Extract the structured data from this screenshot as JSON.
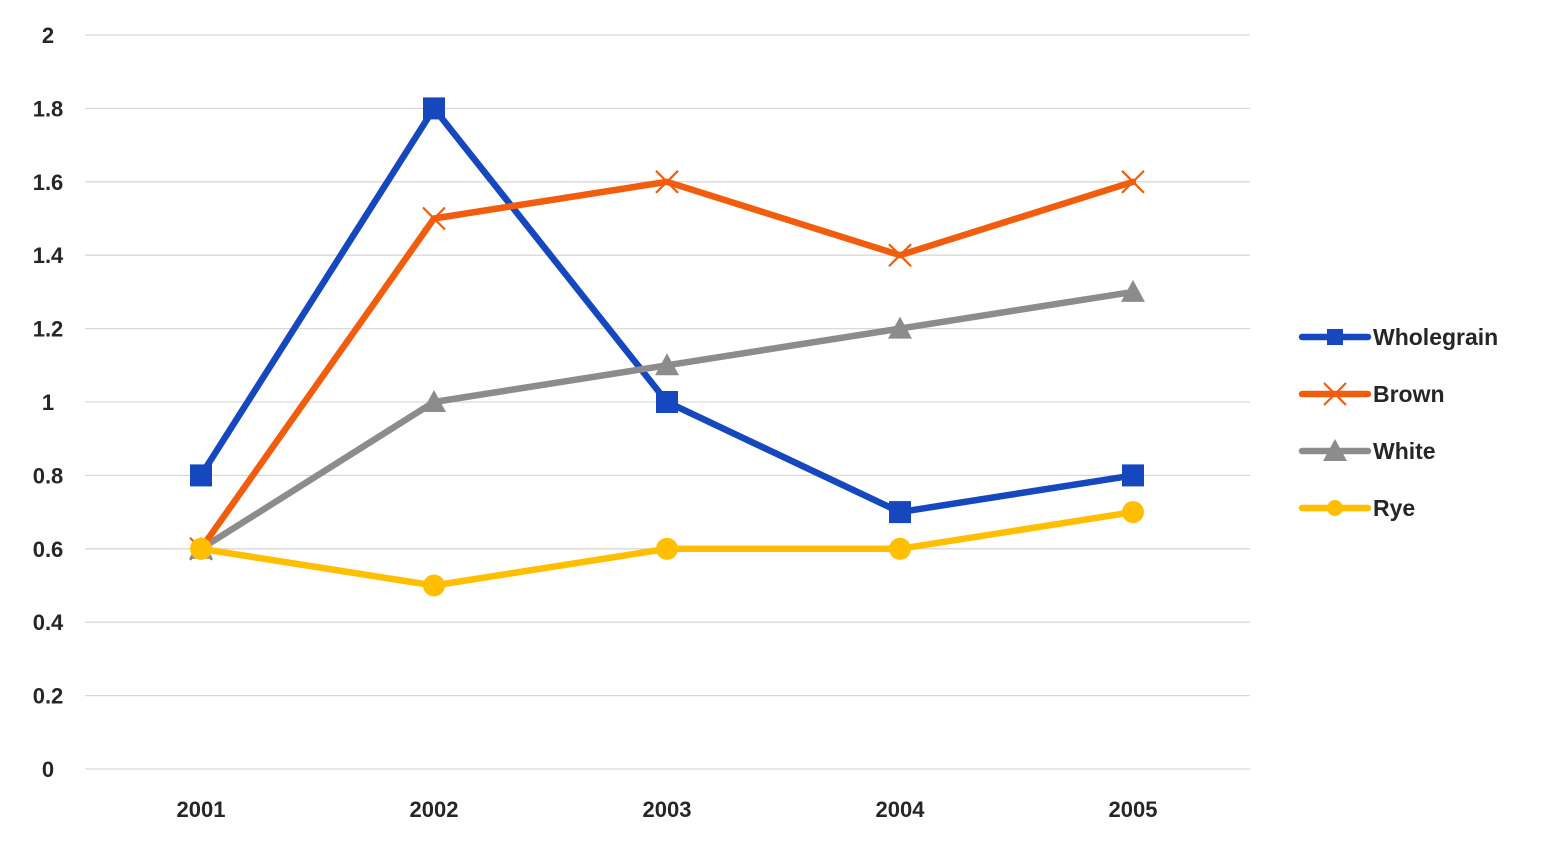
{
  "chart_data": {
    "type": "line",
    "title": "",
    "xlabel": "",
    "ylabel": "",
    "categories": [
      "2001",
      "2002",
      "2003",
      "2004",
      "2005"
    ],
    "ylim": [
      0,
      2
    ],
    "y_ticks": [
      "0",
      "0.2",
      "0.4",
      "0.6",
      "0.8",
      "1",
      "1.2",
      "1.4",
      "1.6",
      "1.8",
      "2"
    ],
    "grid": "horizontal",
    "legend_position": "right",
    "series": [
      {
        "name": "Wholegrain",
        "values": [
          0.8,
          1.8,
          1.0,
          0.7,
          0.8
        ],
        "color": "#1547BF",
        "marker": "square"
      },
      {
        "name": "Brown",
        "values": [
          0.6,
          1.5,
          1.6,
          1.4,
          1.6
        ],
        "color": "#F25C0D",
        "marker": "x"
      },
      {
        "name": "White",
        "values": [
          0.6,
          1.0,
          1.1,
          1.2,
          1.3
        ],
        "color": "#8C8C8C",
        "marker": "triangle"
      },
      {
        "name": "Rye",
        "values": [
          0.6,
          0.5,
          0.6,
          0.6,
          0.7
        ],
        "color": "#FFBF00",
        "marker": "circle"
      }
    ]
  }
}
